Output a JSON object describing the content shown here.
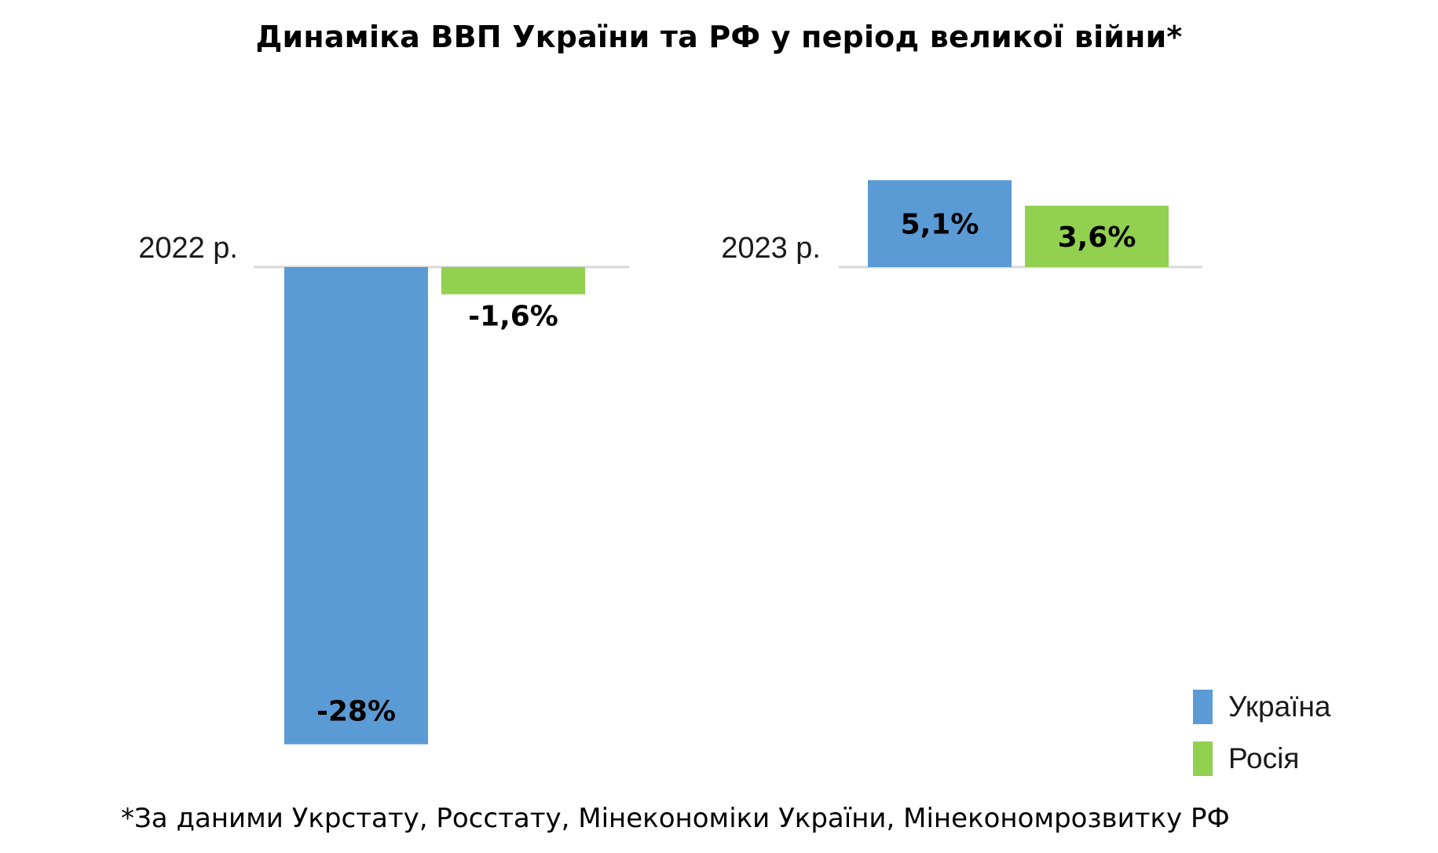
{
  "title": "Динаміка ВВП України та РФ у період великої війни*",
  "footnote": "*За даними Укрстату, Росстату, Мінекономіки України, Мінекономрозвитку РФ",
  "colors": {
    "ukraine": "#5b9bd5",
    "russia": "#92d050",
    "axis": "#d9d9d9"
  },
  "chart_data": {
    "type": "bar",
    "title": "Динаміка ВВП України та РФ у період великої війни*",
    "categories": [
      "2022 р.",
      "2023 р."
    ],
    "series": [
      {
        "name": "Україна",
        "values": [
          -28,
          5.1
        ],
        "labels": [
          "-28%",
          "5,1%"
        ],
        "color": "#5b9bd5"
      },
      {
        "name": "Росія",
        "values": [
          -1.6,
          3.6
        ],
        "labels": [
          "-1,6%",
          "3,6%"
        ],
        "color": "#92d050"
      }
    ],
    "legend_position": "bottom-right",
    "grid": false
  }
}
